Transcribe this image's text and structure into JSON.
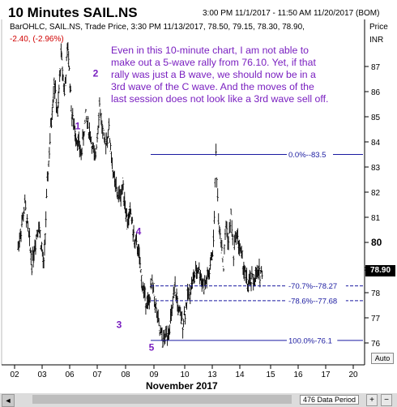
{
  "header": {
    "title": "10 Minutes SAIL.NS",
    "range": "3:00 PM 11/1/2017 - 11:50 AM 11/20/2017 (BOM)",
    "legend_line1": "BarOHLC, SAIL.NS, Trade Price, 3:30 PM 11/13/2017, 78.50, 79.15, 78.30, 78.90,",
    "legend_line2": "-2.40, (-2.96%)",
    "price_title": "Price",
    "price_unit": "INR"
  },
  "annotation_text": "Even in this 10-minute chart, I am not able to make out a 5-wave rally from 76.10. Yet, if that rally was just a B wave, we should now be in a 3rd wave of the C wave. And the moves of the last session does not look like a 3rd wave sell off.",
  "last_price_label": "78.90",
  "auto_label": "Auto",
  "scrollbar": {
    "period_label": "476 Data Period",
    "plus": "+",
    "minus": "−",
    "left": "◄"
  },
  "colors": {
    "bars": "#000000",
    "fib_lines": "#1a1aa0",
    "wave_labels": "#7a20c0",
    "change_negative": "#d00000",
    "annotation": "#7a20c0"
  },
  "chart_data": {
    "type": "ohlc",
    "title": "10 Minutes SAIL.NS",
    "xlabel": "November 2017",
    "ylabel": "Price INR",
    "ylim": [
      75.5,
      88.3
    ],
    "y_ticks": [
      76,
      77,
      78,
      79,
      80,
      81,
      82,
      83,
      84,
      85,
      86,
      87
    ],
    "x_ticks": [
      "02",
      "03",
      "06",
      "07",
      "08",
      "09",
      "10",
      "13",
      "14",
      "15",
      "16",
      "17",
      "20"
    ],
    "grid": false,
    "price_path": [
      [
        "02",
        79.8
      ],
      [
        "02",
        81.5
      ],
      [
        "02",
        79.2
      ],
      [
        "02",
        80.8
      ],
      [
        "03",
        79.0
      ],
      [
        "03",
        82.3
      ],
      [
        "03",
        84.5
      ],
      [
        "03",
        86.5
      ],
      [
        "03",
        85.0
      ],
      [
        "03",
        87.5
      ],
      [
        "03",
        86.0
      ],
      [
        "03",
        87.8
      ],
      [
        "06",
        85.0
      ],
      [
        "06",
        84.2
      ],
      [
        "06",
        83.5
      ],
      [
        "06",
        85.0
      ],
      [
        "06",
        84.3
      ],
      [
        "06",
        83.2
      ],
      [
        "07",
        85.5
      ],
      [
        "07",
        83.8
      ],
      [
        "07",
        84.5
      ],
      [
        "07",
        82.5
      ],
      [
        "07",
        81.8
      ],
      [
        "07",
        82.2
      ],
      [
        "08",
        80.8
      ],
      [
        "08",
        81.2
      ],
      [
        "08",
        80.0
      ],
      [
        "08",
        79.8
      ],
      [
        "08",
        78.5
      ],
      [
        "08",
        77.8
      ],
      [
        "08",
        77.5
      ],
      [
        "08",
        78.4
      ],
      [
        "09",
        77.4
      ],
      [
        "09",
        76.4
      ],
      [
        "09",
        76.1
      ],
      [
        "09",
        76.4
      ],
      [
        "09",
        77.0
      ],
      [
        "09",
        78.2
      ],
      [
        "09",
        77.2
      ],
      [
        "09",
        76.8
      ],
      [
        "10",
        77.8
      ],
      [
        "10",
        78.5
      ],
      [
        "10",
        79.0
      ],
      [
        "10",
        78.2
      ],
      [
        "10",
        78.8
      ],
      [
        "13",
        80.0
      ],
      [
        "13",
        83.5
      ],
      [
        "13",
        81.0
      ],
      [
        "13",
        80.2
      ],
      [
        "13",
        79.0
      ],
      [
        "13",
        80.8
      ],
      [
        "13",
        80.0
      ],
      [
        "13",
        81.1
      ],
      [
        "13",
        79.5
      ],
      [
        "13",
        80.4
      ],
      [
        "13",
        80.0
      ],
      [
        "14",
        78.3
      ],
      [
        "14",
        78.9
      ]
    ],
    "fibonacci": [
      {
        "label": "0.0%--83.5",
        "level": 83.5,
        "start": "09"
      },
      {
        "label": "-70.7%--78.27",
        "level": 78.27,
        "start": "09"
      },
      {
        "label": "-78.6%--77.68",
        "level": 77.68,
        "start": "09"
      },
      {
        "label": "100.0%-76.1",
        "level": 76.1,
        "start": "09"
      }
    ],
    "wave_labels": [
      {
        "text": "1",
        "x": "06",
        "y": 84.5
      },
      {
        "text": "2",
        "x": "07",
        "y": 86.6
      },
      {
        "text": "3",
        "x": "08",
        "y": 76.6
      },
      {
        "text": "4",
        "x": "08",
        "y": 80.3
      },
      {
        "text": "5",
        "x": "09",
        "y": 75.7
      }
    ],
    "last_price": 78.9
  }
}
